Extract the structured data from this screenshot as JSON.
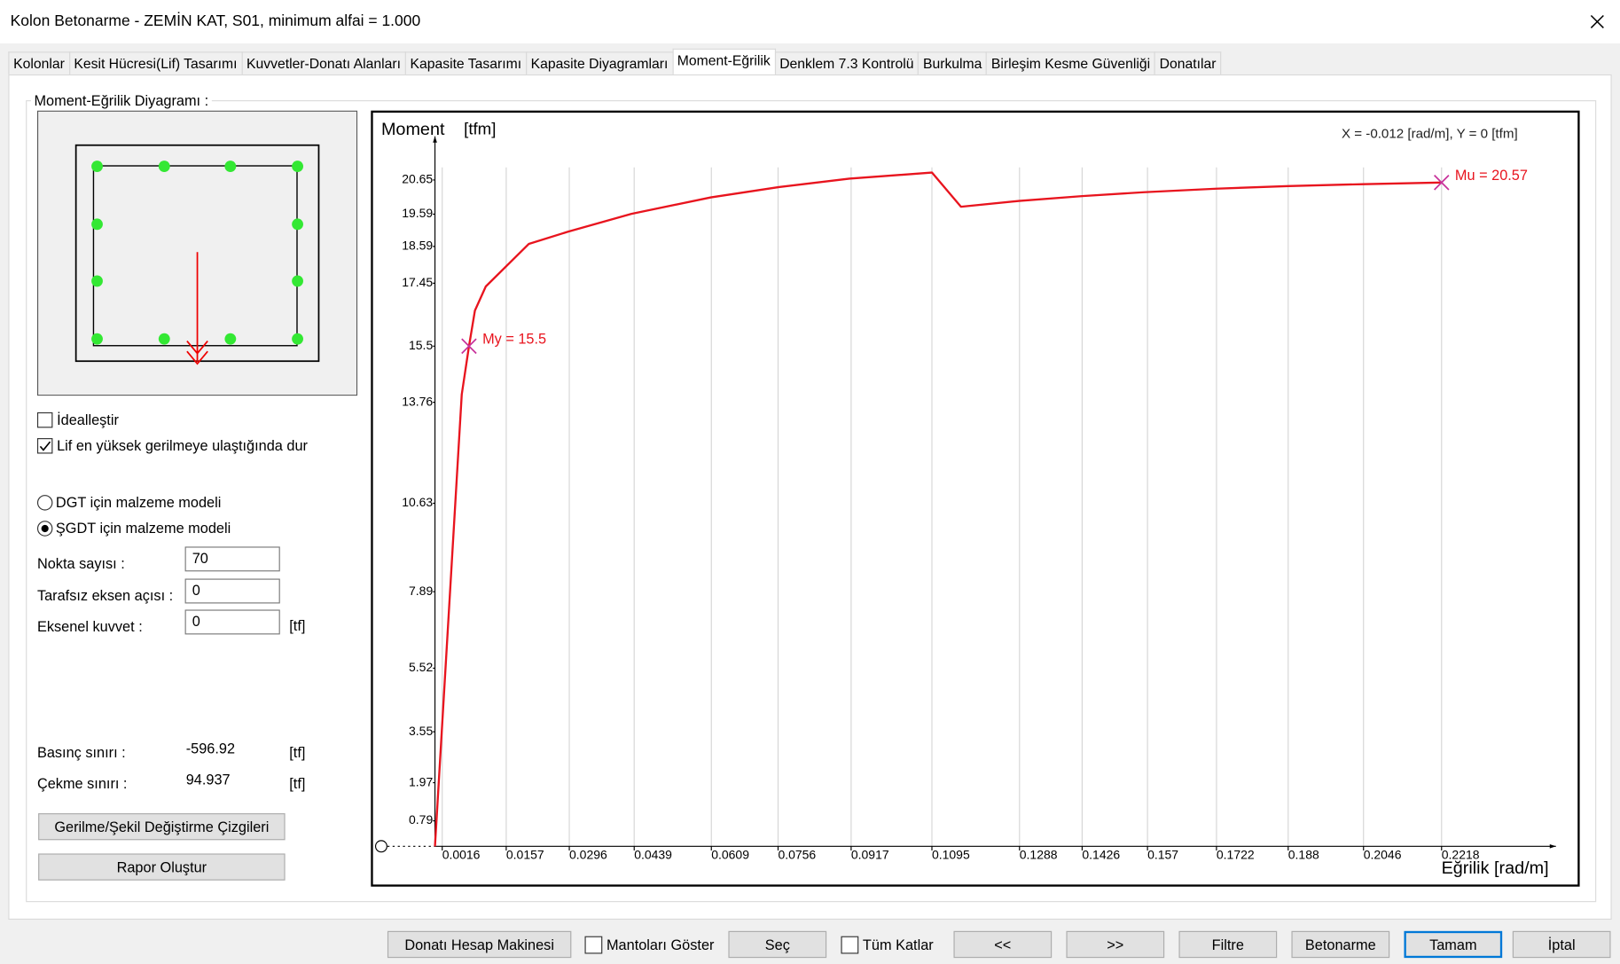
{
  "window": {
    "title": "Kolon Betonarme - ZEMİN KAT, S01, minimum alfai = 1.000"
  },
  "tabs": [
    "Kolonlar",
    "Kesit Hücresi(Lif) Tasarımı",
    "Kuvvetler-Donatı Alanları",
    "Kapasite Tasarımı",
    "Kapasite Diyagramları",
    "Moment-Eğrilik",
    "Denklem 7.3 Kontrolü",
    "Burkulma",
    "Birleşim Kesme Güvenliği",
    "Donatılar"
  ],
  "active_tab": 5,
  "group_title": "Moment-Eğrilik Diyagramı :",
  "checkboxes": [
    {
      "label": "İdealleştir",
      "checked": false
    },
    {
      "label": "Lif en yüksek gerilmeye ulaştığında dur",
      "checked": true
    }
  ],
  "radios": [
    {
      "label": "DGT için malzeme modeli",
      "selected": false
    },
    {
      "label": "ŞGDT için malzeme modeli",
      "selected": true
    }
  ],
  "fields": [
    {
      "label": "Nokta sayısı :",
      "value": "70"
    },
    {
      "label": "Tarafsız eksen açısı :",
      "value": "0"
    },
    {
      "label": "Eksenel kuvvet :",
      "value": "0",
      "unit": "[tf]"
    }
  ],
  "limits": [
    {
      "label": "Basınç sınırı :",
      "value": "-596.92",
      "unit": "[tf]"
    },
    {
      "label": "Çekme sınırı :",
      "value": "94.937",
      "unit": "[tf]"
    }
  ],
  "side_buttons": [
    "Gerilme/Şekil Değiştirme Çizgileri",
    "Rapor Oluştur"
  ],
  "footer": [
    {
      "kind": "button",
      "label": "Donatı Hesap Makinesi"
    },
    {
      "kind": "checkbox",
      "label": "Mantoları Göster",
      "checked": false
    },
    {
      "kind": "button",
      "label": "Seç"
    },
    {
      "kind": "checkbox",
      "label": "Tüm Katlar",
      "checked": false
    },
    {
      "kind": "button",
      "label": "<<"
    },
    {
      "kind": "button",
      "label": ">>"
    },
    {
      "kind": "button",
      "label": "Filtre"
    },
    {
      "kind": "button",
      "label": "Betonarme"
    },
    {
      "kind": "button",
      "label": "Tamam",
      "focused": true
    },
    {
      "kind": "button",
      "label": "İptal"
    }
  ],
  "chart_data": {
    "type": "line",
    "y_label": "Moment",
    "y_unit": "[tfm]",
    "x_label": "Eğrilik [rad/m]",
    "readout": "X = -0.012 [rad/m],  Y = 0 [tfm]",
    "xlim": [
      0,
      0.247
    ],
    "ylim": [
      0,
      22
    ],
    "xticks": [
      0.0016,
      0.0157,
      0.0296,
      0.0439,
      0.0609,
      0.0756,
      0.0917,
      0.1095,
      0.1288,
      0.1426,
      0.157,
      0.1722,
      0.188,
      0.2046,
      0.2218
    ],
    "yticks": [
      0.79,
      1.97,
      3.55,
      5.52,
      7.89,
      10.63,
      13.76,
      15.5,
      17.45,
      18.59,
      19.59,
      20.65
    ],
    "grid": "x",
    "color": "#e8141e",
    "x": [
      0,
      0.0059,
      0.0075,
      0.0088,
      0.0112,
      0.0207,
      0.0294,
      0.0433,
      0.0608,
      0.0758,
      0.0913,
      0.1095,
      0.1159,
      0.1287,
      0.1426,
      0.1562,
      0.1722,
      0.1881,
      0.2045,
      0.2218
    ],
    "values": [
      0,
      14.0,
      15.5,
      16.6,
      17.35,
      18.67,
      19.05,
      19.6,
      20.11,
      20.43,
      20.69,
      20.88,
      19.82,
      20.0,
      20.15,
      20.27,
      20.38,
      20.46,
      20.52,
      20.57
    ],
    "annotations": [
      {
        "label": "My = 15.5",
        "x": 0.0075,
        "y": 15.5
      },
      {
        "label": "Mu = 20.57",
        "x": 0.2218,
        "y": 20.57
      }
    ],
    "marker_color": "#c8329b"
  }
}
